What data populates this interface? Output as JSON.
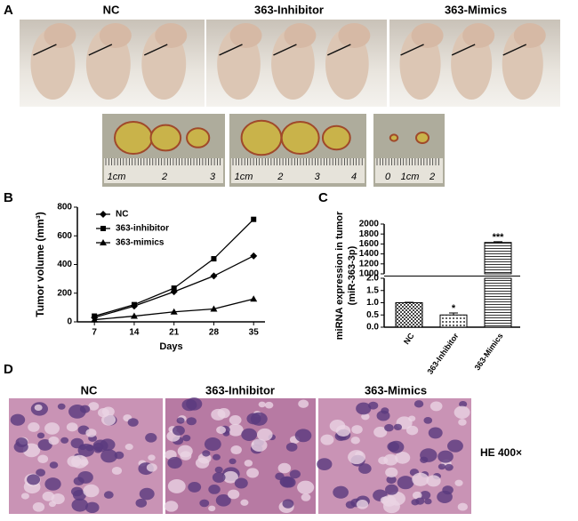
{
  "figure": {
    "panel_labels": [
      "A",
      "B",
      "C",
      "D"
    ],
    "a_labels": [
      "NC",
      "363-Inhibitor",
      "363-Mimics"
    ],
    "ruler_labels": [
      [
        "1cm",
        "2",
        "3"
      ],
      [
        "1cm",
        "2",
        "3",
        "4"
      ],
      [
        "0",
        "1cm",
        "2"
      ]
    ],
    "d_labels": [
      "NC",
      "363-Inhibitor",
      "363-Mimics"
    ],
    "d_note": "HE 400×"
  },
  "chart_data": [
    {
      "type": "line",
      "ylabel": "Tumor volume (mm³)",
      "xlabel": "Days",
      "x": [
        7,
        14,
        21,
        28,
        35
      ],
      "xlim": [
        4,
        37
      ],
      "xticks": [
        7,
        14,
        21,
        28,
        35
      ],
      "ylim": [
        0,
        800
      ],
      "yticks": [
        0,
        200,
        400,
        600,
        800
      ],
      "series": [
        {
          "name": "NC",
          "marker": "diamond",
          "color": "#000000",
          "values": [
            30,
            110,
            210,
            320,
            460
          ]
        },
        {
          "name": "363-inhibitor",
          "marker": "square",
          "color": "#000000",
          "values": [
            40,
            120,
            235,
            440,
            715
          ]
        },
        {
          "name": "363-mimics",
          "marker": "triangle",
          "color": "#000000",
          "values": [
            15,
            40,
            70,
            90,
            160
          ]
        }
      ]
    },
    {
      "type": "broken-bar",
      "ylabel": [
        "miRNA expression in tumor",
        "(miR-363-3p)"
      ],
      "categories": [
        "NC",
        "363-Inhibitor",
        "363-Mimics"
      ],
      "values": [
        1.0,
        0.5,
        1630
      ],
      "errors": [
        0.02,
        0.08,
        15
      ],
      "value_annotations": [
        null,
        "*",
        "***"
      ],
      "patterns": [
        "checker",
        "dots",
        "lines"
      ],
      "ylim_lower": [
        0,
        2.0
      ],
      "yticks_lower": [
        {
          "value": 0,
          "label": "0.0"
        },
        0.5,
        {
          "value": 1,
          "label": "1.0"
        },
        1.5,
        {
          "value": 2,
          "label": "2.0"
        }
      ],
      "ylim_upper": [
        1000,
        2000
      ],
      "yticks_upper": [
        1000,
        1200,
        1400,
        1600,
        1800,
        2000
      ]
    }
  ]
}
